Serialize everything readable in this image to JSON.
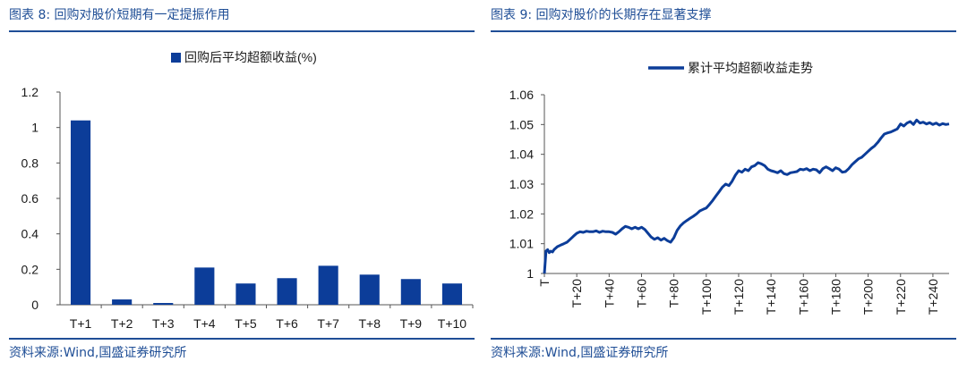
{
  "left": {
    "title": "图表 8:  回购对股价短期有一定提振作用",
    "source": "资料来源:Wind,国盛证券研究所"
  },
  "right": {
    "title": "图表 9:  回购对股价的长期存在显著支撑",
    "source": "资料来源:Wind,国盛证券研究所"
  },
  "colors": {
    "accent": "#1f4e96",
    "bar": "#0c3d99",
    "line": "#0c3d99"
  },
  "chart_data": [
    {
      "type": "bar",
      "legend": "回购后平均超额收益(%)",
      "legend_position": "top-center",
      "categories": [
        "T+1",
        "T+2",
        "T+3",
        "T+4",
        "T+5",
        "T+6",
        "T+7",
        "T+8",
        "T+9",
        "T+10"
      ],
      "series": [
        {
          "name": "回购后平均超额收益(%)",
          "values": [
            1.04,
            0.03,
            0.01,
            0.21,
            0.12,
            0.15,
            0.22,
            0.17,
            0.145,
            0.12
          ]
        }
      ],
      "ylim": [
        0,
        1.2
      ],
      "yticks": [
        "0",
        "0.2",
        "0.4",
        "0.6",
        "0.8",
        "1",
        "1.2"
      ],
      "grid": false
    },
    {
      "type": "line",
      "legend": "累计平均超额收益走势",
      "legend_position": "top-center",
      "xlim": [
        0,
        250
      ],
      "ylim": [
        1.0,
        1.06
      ],
      "yticks": [
        "1",
        "1.01",
        "1.02",
        "1.03",
        "1.04",
        "1.05",
        "1.06"
      ],
      "xticks": [
        {
          "value": 0,
          "label": "T"
        },
        {
          "value": 20,
          "label": "T+20"
        },
        {
          "value": 40,
          "label": "T+40"
        },
        {
          "value": 60,
          "label": "T+60"
        },
        {
          "value": 80,
          "label": "T+80"
        },
        {
          "value": 100,
          "label": "T+100"
        },
        {
          "value": 120,
          "label": "T+120"
        },
        {
          "value": 140,
          "label": "T+140"
        },
        {
          "value": 160,
          "label": "T+160"
        },
        {
          "value": 180,
          "label": "T+180"
        },
        {
          "value": 200,
          "label": "T+200"
        },
        {
          "value": 220,
          "label": "T+220"
        },
        {
          "value": 240,
          "label": "T+240"
        }
      ],
      "grid": false,
      "series": [
        {
          "name": "累计平均超额收益走势",
          "x": [
            0,
            1,
            2,
            3,
            4,
            5,
            6,
            8,
            10,
            12,
            14,
            16,
            18,
            20,
            22,
            24,
            26,
            28,
            30,
            32,
            34,
            36,
            38,
            40,
            42,
            44,
            46,
            48,
            50,
            52,
            54,
            56,
            58,
            60,
            62,
            64,
            66,
            68,
            70,
            72,
            74,
            76,
            78,
            80,
            82,
            84,
            86,
            88,
            90,
            92,
            94,
            96,
            98,
            100,
            102,
            104,
            106,
            108,
            110,
            112,
            114,
            116,
            118,
            120,
            122,
            124,
            126,
            128,
            130,
            132,
            134,
            136,
            138,
            140,
            142,
            144,
            146,
            148,
            150,
            152,
            154,
            156,
            158,
            160,
            162,
            164,
            166,
            168,
            170,
            172,
            174,
            176,
            178,
            180,
            182,
            184,
            186,
            188,
            190,
            192,
            194,
            196,
            198,
            200,
            202,
            204,
            206,
            208,
            210,
            212,
            214,
            216,
            218,
            220,
            222,
            224,
            226,
            228,
            230,
            232,
            234,
            236,
            238,
            240,
            242,
            244,
            246,
            248,
            250
          ],
          "y": [
            1.0,
            1.0075,
            1.008,
            1.007,
            1.0075,
            1.0072,
            1.008,
            1.009,
            1.0095,
            1.01,
            1.0105,
            1.0115,
            1.0125,
            1.0135,
            1.014,
            1.0138,
            1.0142,
            1.014,
            1.014,
            1.0143,
            1.0138,
            1.0142,
            1.014,
            1.014,
            1.0138,
            1.0132,
            1.014,
            1.015,
            1.0158,
            1.0155,
            1.015,
            1.0155,
            1.015,
            1.0155,
            1.0148,
            1.0135,
            1.0122,
            1.0115,
            1.012,
            1.0112,
            1.0118,
            1.011,
            1.0105,
            1.012,
            1.0145,
            1.016,
            1.017,
            1.0178,
            1.0185,
            1.0192,
            1.02,
            1.021,
            1.0215,
            1.022,
            1.0232,
            1.0245,
            1.026,
            1.0275,
            1.029,
            1.03,
            1.0295,
            1.031,
            1.033,
            1.0345,
            1.034,
            1.035,
            1.0345,
            1.0358,
            1.0362,
            1.0372,
            1.0368,
            1.0362,
            1.035,
            1.0345,
            1.0342,
            1.0338,
            1.0345,
            1.0335,
            1.0332,
            1.0338,
            1.034,
            1.0342,
            1.035,
            1.0348,
            1.0352,
            1.0345,
            1.035,
            1.0348,
            1.0338,
            1.0352,
            1.0358,
            1.0352,
            1.0345,
            1.0355,
            1.035,
            1.034,
            1.0342,
            1.0352,
            1.0365,
            1.0375,
            1.0385,
            1.039,
            1.04,
            1.041,
            1.042,
            1.0428,
            1.044,
            1.0455,
            1.0468,
            1.0472,
            1.0475,
            1.048,
            1.0485,
            1.0502,
            1.0495,
            1.0505,
            1.051,
            1.05,
            1.0515,
            1.0505,
            1.0508,
            1.0502,
            1.0506,
            1.05,
            1.0505,
            1.0498,
            1.0503,
            1.05,
            1.0502
          ]
        }
      ]
    }
  ]
}
